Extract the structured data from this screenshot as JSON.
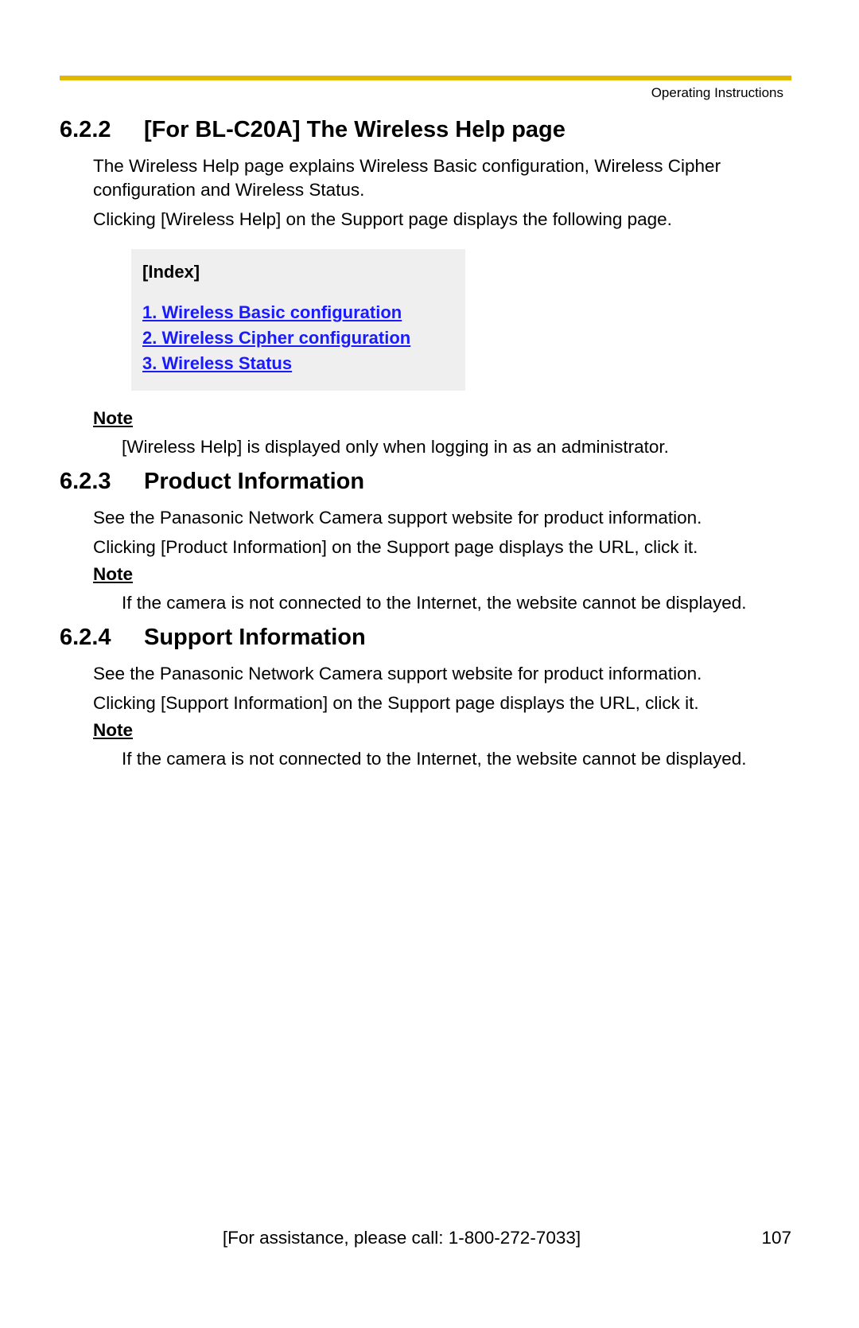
{
  "colors": {
    "rule": "#e0b800",
    "indexBg": "#efefef",
    "link": "#1a1aff",
    "text": "#000000"
  },
  "header": {
    "label": "Operating Instructions"
  },
  "sections": [
    {
      "num": "6.2.2",
      "title": "[For BL-C20A] The Wireless Help page",
      "paragraphs": [
        "The Wireless Help page explains Wireless Basic configuration, Wireless Cipher configuration and Wireless Status.",
        "Clicking [Wireless Help] on the Support page displays the following page."
      ],
      "indexBox": {
        "title": "[Index]",
        "links": [
          "1. Wireless Basic configuration",
          "2. Wireless Cipher configuration",
          "3. Wireless Status"
        ]
      },
      "note": {
        "label": "Note",
        "text": "[Wireless Help] is displayed only when logging in as an administrator."
      }
    },
    {
      "num": "6.2.3",
      "title": "Product Information",
      "paragraphs": [
        "See the Panasonic Network Camera support website for product information.",
        "Clicking [Product Information] on the Support page displays the URL, click it."
      ],
      "note": {
        "label": "Note",
        "text": "If the camera is not connected to the Internet, the website cannot be displayed."
      }
    },
    {
      "num": "6.2.4",
      "title": "Support Information",
      "paragraphs": [
        "See the Panasonic Network Camera support website for product information.",
        "Clicking [Support Information] on the Support page displays the URL, click it."
      ],
      "note": {
        "label": "Note",
        "text": "If the camera is not connected to the Internet, the website cannot be displayed."
      }
    }
  ],
  "footer": {
    "assist": "[For assistance, please call: 1-800-272-7033]",
    "page": "107"
  }
}
